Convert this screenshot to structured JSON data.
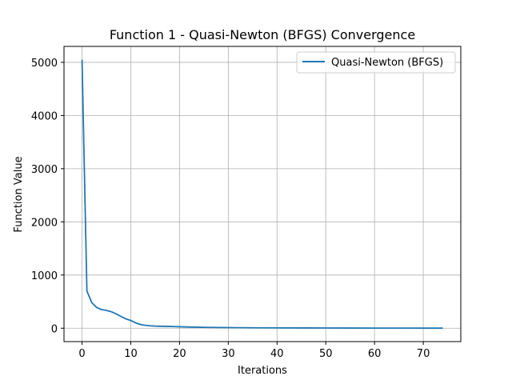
{
  "chart_data": {
    "type": "line",
    "title": "Function 1 - Quasi-Newton (BFGS) Convergence",
    "xlabel": "Iterations",
    "ylabel": "Function Value",
    "xlim": [
      -3.7,
      77.7
    ],
    "ylim": [
      -252,
      5300
    ],
    "xticks": [
      0,
      10,
      20,
      30,
      40,
      50,
      60,
      70
    ],
    "yticks": [
      0,
      1000,
      2000,
      3000,
      4000,
      5000
    ],
    "grid": true,
    "legend_position": "top-right",
    "series": [
      {
        "name": "Quasi-Newton (BFGS)",
        "color": "#1f77b4",
        "x": [
          0,
          1,
          2,
          3,
          4,
          5,
          6,
          7,
          8,
          9,
          10,
          11,
          12,
          13,
          14,
          15,
          16,
          17,
          18,
          19,
          20,
          22,
          24,
          26,
          28,
          30,
          35,
          40,
          45,
          50,
          55,
          60,
          65,
          70,
          74
        ],
        "y": [
          5050,
          700,
          480,
          390,
          350,
          335,
          310,
          270,
          220,
          175,
          145,
          100,
          70,
          55,
          45,
          40,
          37,
          35,
          33,
          30,
          27,
          22,
          18,
          15,
          13,
          11,
          8,
          6,
          5,
          4,
          3,
          2,
          2,
          1,
          1
        ]
      }
    ]
  }
}
